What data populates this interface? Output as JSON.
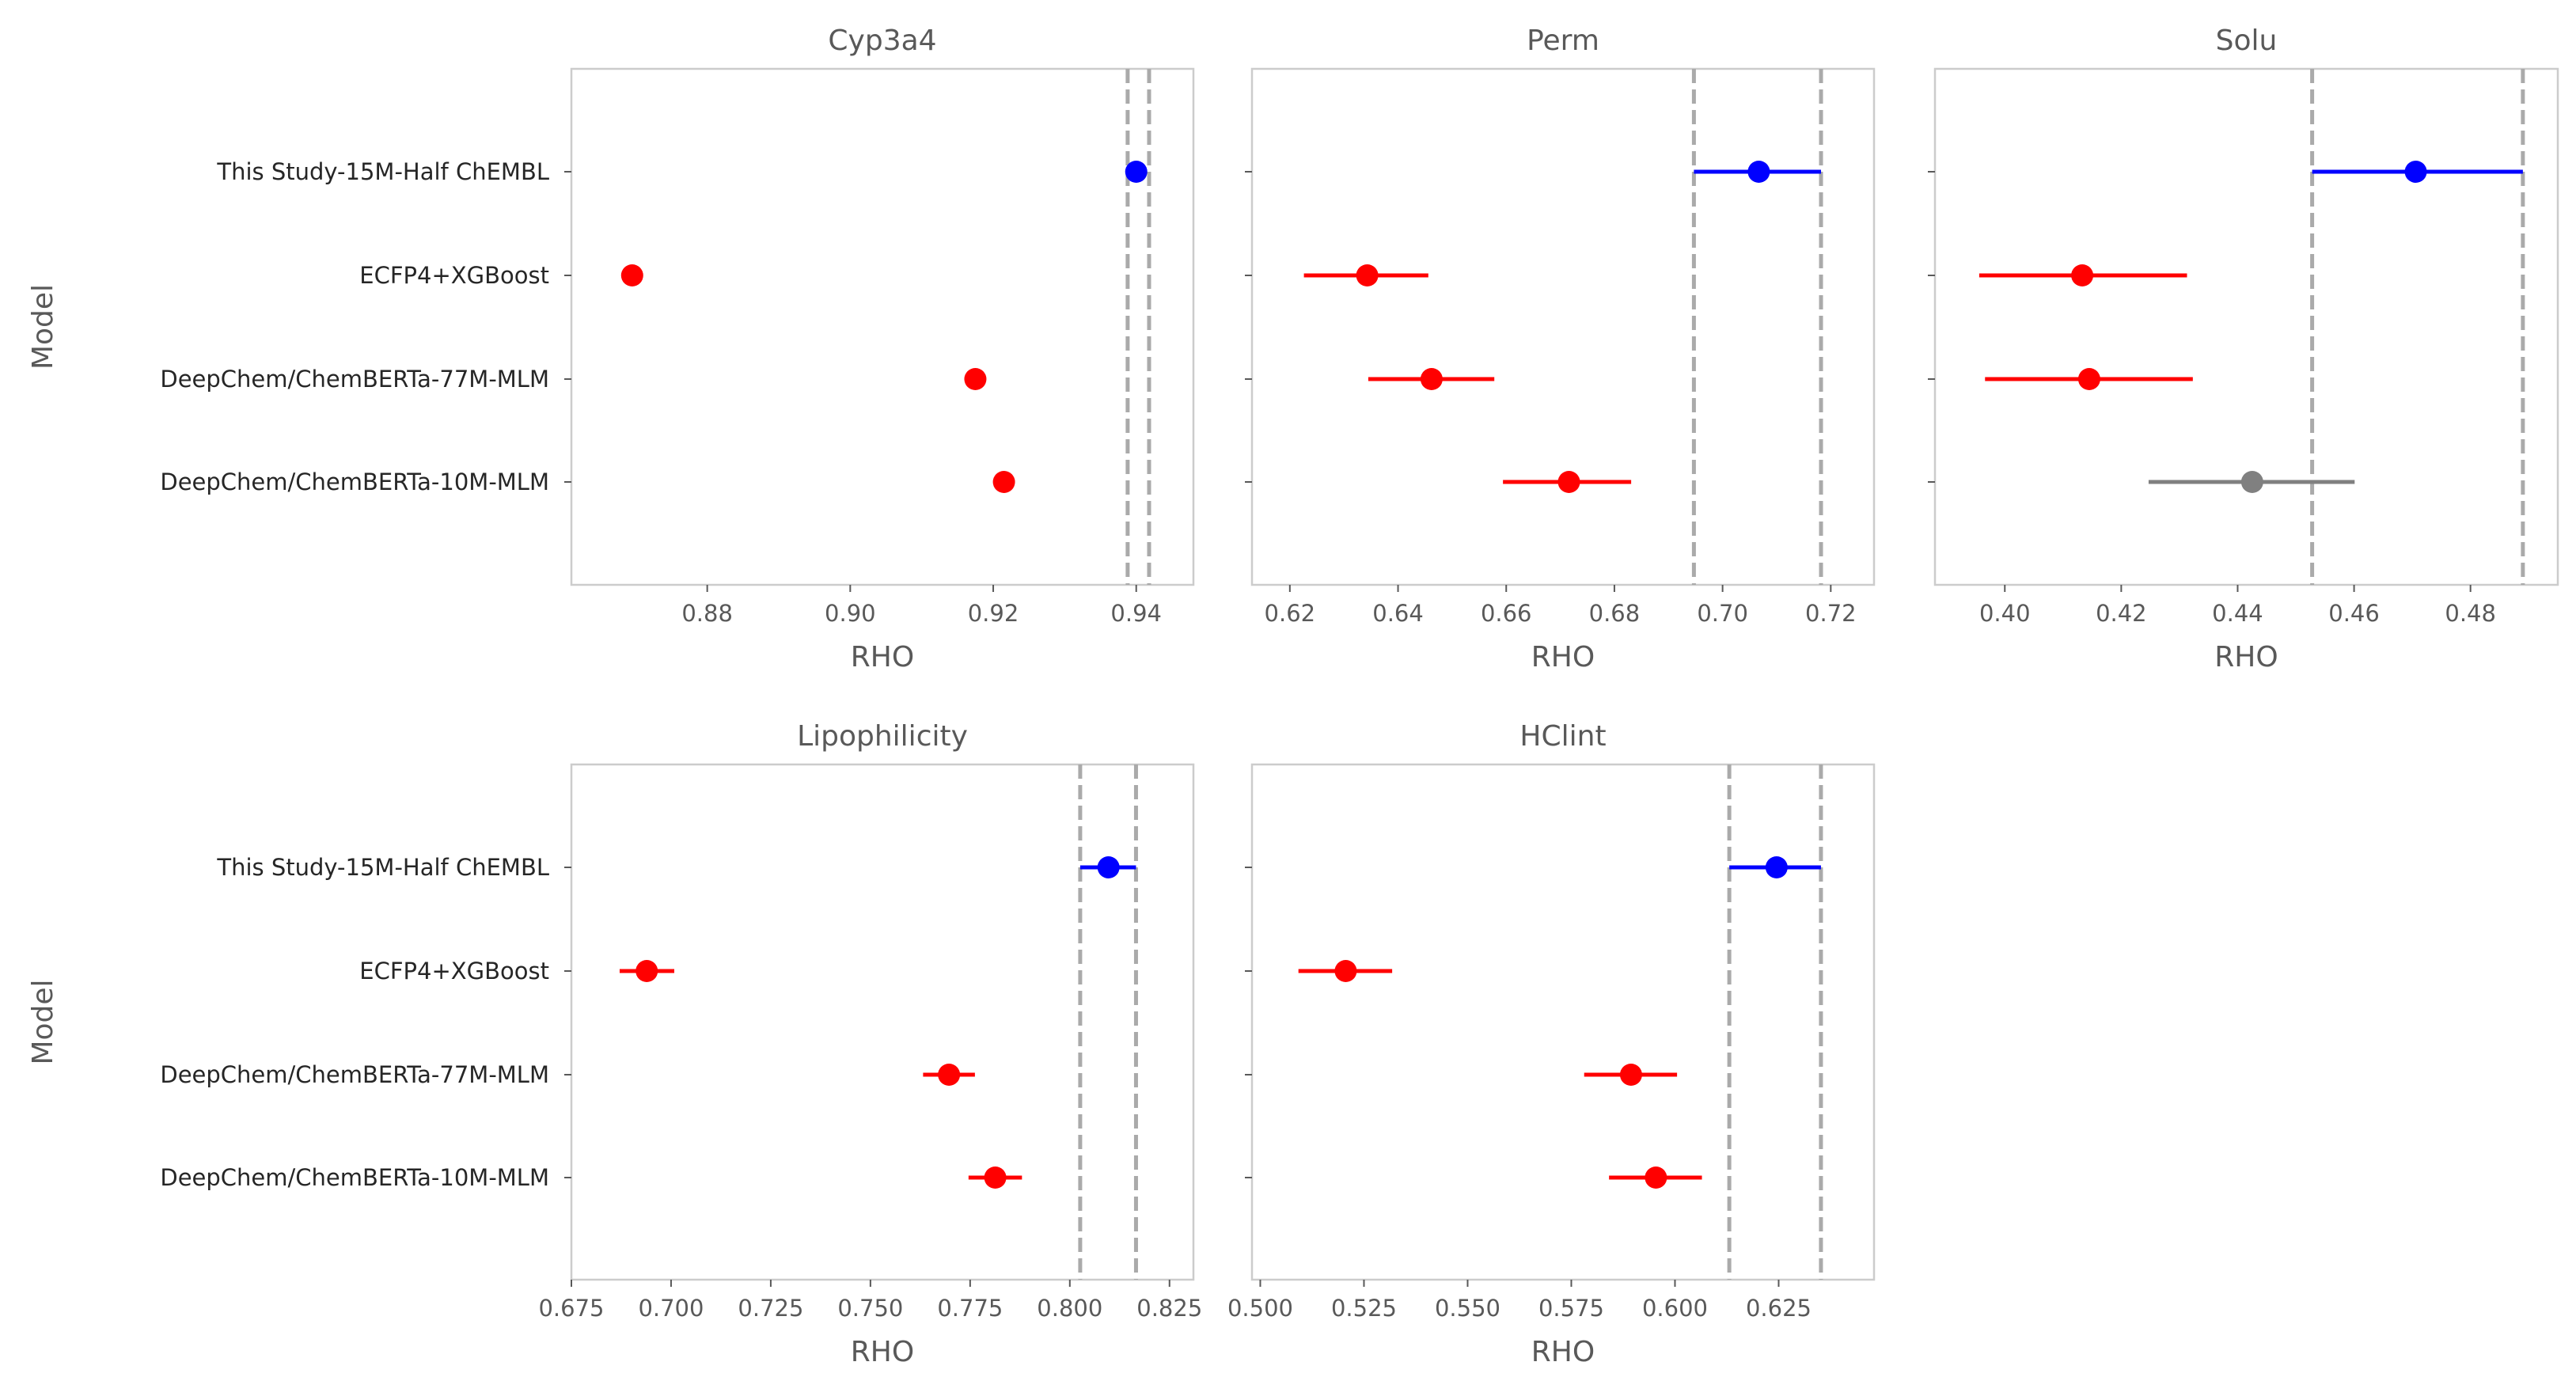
{
  "chart_data": [
    {
      "type": "scatter",
      "title": "Cyp3a4",
      "xlabel": "RHO",
      "ylabel": "Model",
      "xlim": [
        0.861,
        0.948
      ],
      "xticks": [
        0.88,
        0.9,
        0.92,
        0.94
      ],
      "xtick_labels": [
        "0.88",
        "0.90",
        "0.92",
        "0.94"
      ],
      "categories": [
        "This Study-15M-Half ChEMBL",
        "ECFP4+XGBoost",
        "DeepChem/ChemBERTa-77M-MLM",
        "DeepChem/ChemBERTa-10M-MLM"
      ],
      "points": [
        {
          "model": "This Study-15M-Half ChEMBL",
          "value": 0.94,
          "ci": [
            0.94,
            0.94
          ],
          "color": "#0000ff"
        },
        {
          "model": "ECFP4+XGBoost",
          "value": 0.8695,
          "ci": [
            0.8695,
            0.8695
          ],
          "color": "#ff0000"
        },
        {
          "model": "DeepChem/ChemBERTa-77M-MLM",
          "value": 0.9175,
          "ci": [
            0.9175,
            0.9175
          ],
          "color": "#ff0000"
        },
        {
          "model": "DeepChem/ChemBERTa-10M-MLM",
          "value": 0.9215,
          "ci": [
            0.9215,
            0.9215
          ],
          "color": "#ff0000"
        }
      ],
      "reference_lines": [
        0.9388,
        0.9418
      ]
    },
    {
      "type": "scatter",
      "title": "Perm",
      "xlabel": "RHO",
      "ylabel": "",
      "xlim": [
        0.613,
        0.728
      ],
      "xticks": [
        0.62,
        0.64,
        0.66,
        0.68,
        0.7,
        0.72
      ],
      "xtick_labels": [
        "0.62",
        "0.64",
        "0.66",
        "0.68",
        "0.70",
        "0.72"
      ],
      "categories": [
        "This Study-15M-Half ChEMBL",
        "ECFP4+XGBoost",
        "DeepChem/ChemBERTa-77M-MLM",
        "DeepChem/ChemBERTa-10M-MLM"
      ],
      "points": [
        {
          "model": "This Study-15M-Half ChEMBL",
          "value": 0.7067,
          "ci": [
            0.6947,
            0.7182
          ],
          "color": "#0000ff"
        },
        {
          "model": "ECFP4+XGBoost",
          "value": 0.6343,
          "ci": [
            0.6226,
            0.6456
          ],
          "color": "#ff0000"
        },
        {
          "model": "DeepChem/ChemBERTa-77M-MLM",
          "value": 0.6462,
          "ci": [
            0.6345,
            0.6578
          ],
          "color": "#ff0000"
        },
        {
          "model": "DeepChem/ChemBERTa-10M-MLM",
          "value": 0.6716,
          "ci": [
            0.6594,
            0.6831
          ],
          "color": "#ff0000"
        }
      ],
      "reference_lines": [
        0.6947,
        0.7182
      ]
    },
    {
      "type": "scatter",
      "title": "Solu",
      "xlabel": "RHO",
      "ylabel": "",
      "xlim": [
        0.388,
        0.495
      ],
      "xticks": [
        0.4,
        0.42,
        0.44,
        0.46,
        0.48
      ],
      "xtick_labels": [
        "0.40",
        "0.42",
        "0.44",
        "0.46",
        "0.48"
      ],
      "categories": [
        "This Study-15M-Half ChEMBL",
        "ECFP4+XGBoost",
        "DeepChem/ChemBERTa-77M-MLM",
        "DeepChem/ChemBERTa-10M-MLM"
      ],
      "points": [
        {
          "model": "This Study-15M-Half ChEMBL",
          "value": 0.4706,
          "ci": [
            0.4528,
            0.489
          ],
          "color": "#0000ff"
        },
        {
          "model": "ECFP4+XGBoost",
          "value": 0.4133,
          "ci": [
            0.3956,
            0.4313
          ],
          "color": "#ff0000"
        },
        {
          "model": "DeepChem/ChemBERTa-77M-MLM",
          "value": 0.4145,
          "ci": [
            0.3966,
            0.4323
          ],
          "color": "#ff0000"
        },
        {
          "model": "DeepChem/ChemBERTa-10M-MLM",
          "value": 0.4425,
          "ci": [
            0.4247,
            0.4601
          ],
          "color": "#808080"
        }
      ],
      "reference_lines": [
        0.4528,
        0.489
      ]
    },
    {
      "type": "scatter",
      "title": "Lipophilicity",
      "xlabel": "RHO",
      "ylabel": "Model",
      "xlim": [
        0.675,
        0.831
      ],
      "xticks": [
        0.675,
        0.7,
        0.725,
        0.75,
        0.775,
        0.8,
        0.825
      ],
      "xtick_labels": [
        "0.675",
        "0.700",
        "0.725",
        "0.750",
        "0.775",
        "0.800",
        "0.825"
      ],
      "categories": [
        "This Study-15M-Half ChEMBL",
        "ECFP4+XGBoost",
        "DeepChem/ChemBERTa-77M-MLM",
        "DeepChem/ChemBERTa-10M-MLM"
      ],
      "points": [
        {
          "model": "This Study-15M-Half ChEMBL",
          "value": 0.8097,
          "ci": [
            0.8026,
            0.8166
          ],
          "color": "#0000ff"
        },
        {
          "model": "ECFP4+XGBoost",
          "value": 0.6939,
          "ci": [
            0.6871,
            0.7008
          ],
          "color": "#ff0000"
        },
        {
          "model": "DeepChem/ChemBERTa-77M-MLM",
          "value": 0.7697,
          "ci": [
            0.7632,
            0.7762
          ],
          "color": "#ff0000"
        },
        {
          "model": "DeepChem/ChemBERTa-10M-MLM",
          "value": 0.7813,
          "ci": [
            0.7746,
            0.788
          ],
          "color": "#ff0000"
        }
      ],
      "reference_lines": [
        0.8026,
        0.8166
      ]
    },
    {
      "type": "scatter",
      "title": "HClint",
      "xlabel": "RHO",
      "ylabel": "",
      "xlim": [
        0.498,
        0.648
      ],
      "xticks": [
        0.5,
        0.525,
        0.55,
        0.575,
        0.6,
        0.625
      ],
      "xtick_labels": [
        "0.500",
        "0.525",
        "0.550",
        "0.575",
        "0.600",
        "0.625"
      ],
      "categories": [
        "This Study-15M-Half ChEMBL",
        "ECFP4+XGBoost",
        "DeepChem/ChemBERTa-77M-MLM",
        "DeepChem/ChemBERTa-10M-MLM"
      ],
      "points": [
        {
          "model": "This Study-15M-Half ChEMBL",
          "value": 0.6245,
          "ci": [
            0.6131,
            0.6352
          ],
          "color": "#0000ff"
        },
        {
          "model": "ECFP4+XGBoost",
          "value": 0.5206,
          "ci": [
            0.5092,
            0.5318
          ],
          "color": "#ff0000"
        },
        {
          "model": "DeepChem/ChemBERTa-77M-MLM",
          "value": 0.5894,
          "ci": [
            0.5781,
            0.6005
          ],
          "color": "#ff0000"
        },
        {
          "model": "DeepChem/ChemBERTa-10M-MLM",
          "value": 0.5954,
          "ci": [
            0.5841,
            0.6065
          ],
          "color": "#ff0000"
        }
      ],
      "reference_lines": [
        0.6131,
        0.6352
      ]
    }
  ]
}
